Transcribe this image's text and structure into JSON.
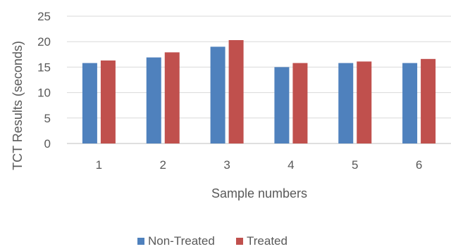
{
  "chart_data": {
    "type": "bar",
    "title": "",
    "xlabel": "Sample numbers",
    "ylabel": "TCT Results (seconds)",
    "categories": [
      "1",
      "2",
      "3",
      "4",
      "5",
      "6"
    ],
    "ylim": [
      0,
      25
    ],
    "yticks": [
      "0",
      "5",
      "10",
      "15",
      "20",
      "25"
    ],
    "grid": true,
    "legend": "bottom",
    "series": [
      {
        "name": "Non-Treated",
        "color": "#4f81bd",
        "values": [
          15.8,
          16.9,
          19.0,
          15.0,
          15.8,
          15.8
        ]
      },
      {
        "name": "Treated",
        "color": "#c0504d",
        "values": [
          16.3,
          17.9,
          20.3,
          15.8,
          16.1,
          16.6
        ]
      }
    ]
  }
}
